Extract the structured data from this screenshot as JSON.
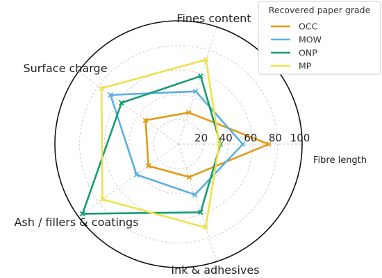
{
  "chart_data": {
    "type": "radar",
    "axes": [
      "Fibre length",
      "Fines content",
      "Surface charge",
      "Ash / fillers & coatings",
      "Ink & adhesives"
    ],
    "rlim": [
      0,
      100
    ],
    "rticks": [
      "20",
      "40",
      "60",
      "80",
      "100"
    ],
    "grid": true,
    "legend": {
      "title": "Recovered paper grade",
      "placement": "top-right"
    },
    "series": [
      {
        "name": "OCC",
        "color": "#E09A12",
        "values": [
          73,
          27,
          33,
          30,
          28
        ]
      },
      {
        "name": "MOW",
        "color": "#5AAFE0",
        "values": [
          52,
          45,
          68,
          42,
          43
        ]
      },
      {
        "name": "ONP",
        "color": "#159B72",
        "values": [
          34,
          58,
          57,
          96,
          58
        ]
      },
      {
        "name": "MP",
        "color": "#F0E04A",
        "values": [
          33,
          72,
          77,
          76,
          71
        ]
      }
    ]
  }
}
